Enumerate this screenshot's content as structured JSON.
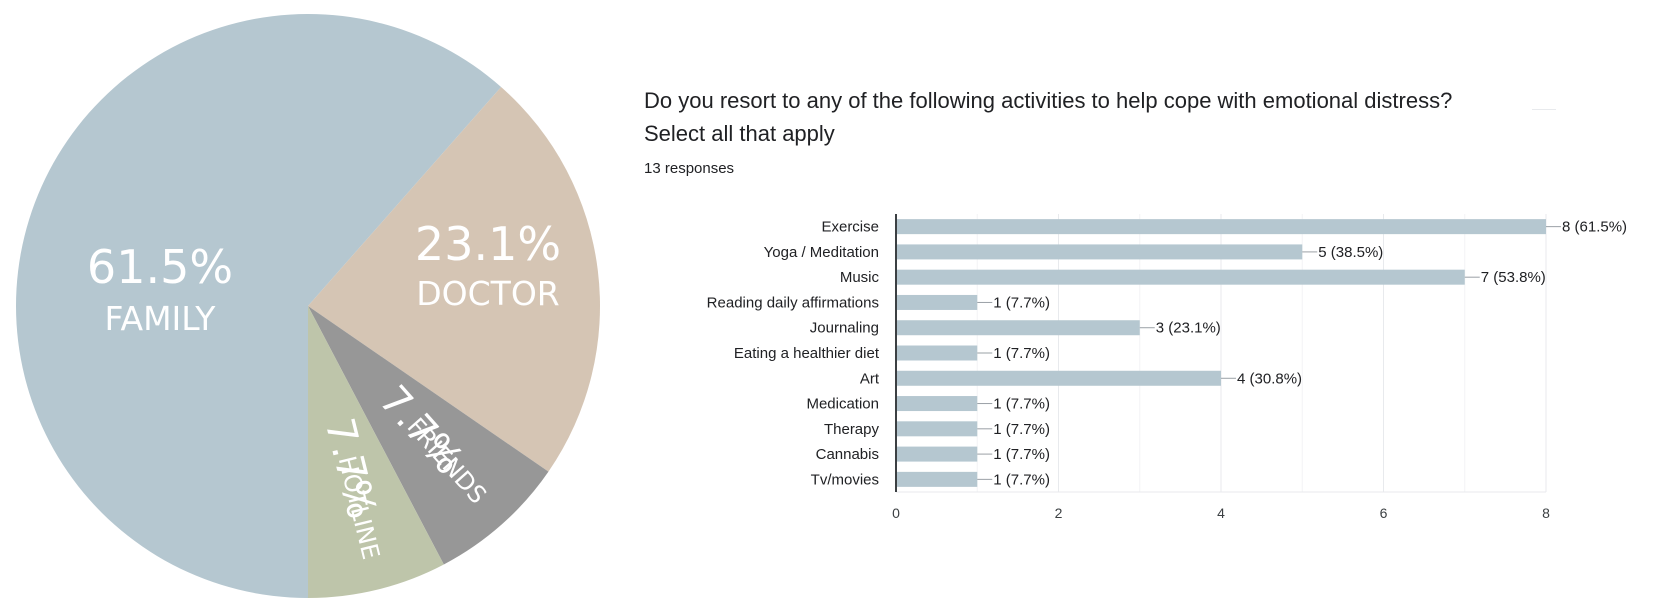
{
  "chart_data": [
    {
      "type": "pie",
      "slices": [
        {
          "label": "FAMILY",
          "percent_label": "61.5%",
          "value": 61.5,
          "color": "#b5c7d0"
        },
        {
          "label": "DOCTOR",
          "percent_label": "23.1%",
          "value": 23.1,
          "color": "#d5c5b4"
        },
        {
          "label": "FRIENDS",
          "percent_label": "7.7%",
          "value": 7.7,
          "color": "#979797"
        },
        {
          "label": "HOTLINE",
          "percent_label": "7.7%",
          "value": 7.7,
          "color": "#bec5aa"
        }
      ]
    },
    {
      "type": "bar",
      "orientation": "horizontal",
      "title": "Do you resort to any of the following activities to help cope with emotional distress?",
      "subtitle": "Select all that apply",
      "responses_label": "13 responses",
      "categories": [
        "Exercise",
        "Yoga / Meditation",
        "Music",
        "Reading daily affirmations",
        "Journaling",
        "Eating a healthier diet",
        "Art",
        "Medication",
        "Therapy",
        "Cannabis",
        "Tv/movies"
      ],
      "values": [
        8,
        5,
        7,
        1,
        3,
        1,
        4,
        1,
        1,
        1,
        1
      ],
      "data_labels": [
        "8 (61.5%)",
        "5 (38.5%)",
        "7 (53.8%)",
        "1 (7.7%)",
        "3 (23.1%)",
        "1 (7.7%)",
        "4 (30.8%)",
        "1 (7.7%)",
        "1 (7.7%)",
        "1 (7.7%)",
        "1 (7.7%)"
      ],
      "xlim": [
        0,
        8
      ],
      "xticks": [
        "0",
        "2",
        "4",
        "6",
        "8"
      ],
      "grid": true,
      "bar_color": "#b5c7d0"
    }
  ]
}
